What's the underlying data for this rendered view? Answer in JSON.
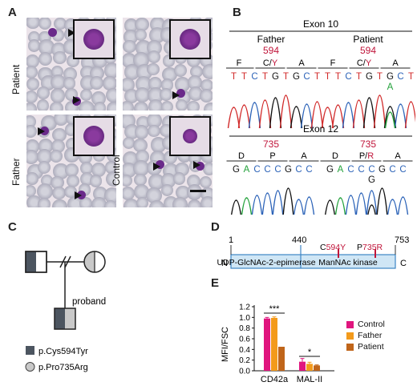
{
  "panels": {
    "A": "A",
    "B": "B",
    "C": "C",
    "D": "D",
    "E": "E"
  },
  "panel_a": {
    "row_labels": {
      "patient": "Patient",
      "father": "Father",
      "control": "Control"
    }
  },
  "panel_b": {
    "exon10": {
      "title": "Exon 10",
      "left_label": "Father",
      "right_label": "Patient",
      "position": "594",
      "amino_acids": [
        "F",
        "C/Y",
        "A"
      ],
      "bases": [
        "T",
        "T",
        "C",
        "T",
        "G",
        "T",
        "G",
        "C",
        "T"
      ],
      "variant_base": "A",
      "base_colors": {
        "T": "#d12a2a",
        "C": "#2c63b8",
        "G": "#111111",
        "A": "#22a13a"
      }
    },
    "exon12": {
      "title": "Exon 12",
      "position": "735",
      "left_amino_acids": [
        "D",
        "P",
        "A"
      ],
      "right_amino_acids": [
        "D",
        "P/R",
        "A"
      ],
      "bases": [
        "G",
        "A",
        "C",
        "C",
        "C",
        "G",
        "C",
        "C"
      ],
      "variant_base": "G"
    }
  },
  "panel_c": {
    "proband_label": "proband",
    "legend": [
      {
        "label": "p.Cys594Tyr",
        "shape": "square"
      },
      {
        "label": "p.Pro735Arg",
        "shape": "circle"
      }
    ]
  },
  "panel_d": {
    "start": "1",
    "mid": "440",
    "end": "753",
    "n_term": "N",
    "c_term": "C",
    "domain1": "UDP-GlcNAc-2-epimerase",
    "domain2": "ManNAc kinase",
    "mutations": [
      {
        "prefix": "C",
        "pos": "594",
        "suffix": "Y"
      },
      {
        "prefix": "P",
        "pos": "735",
        "suffix": "R"
      }
    ]
  },
  "colors": {
    "control": "#e0157e",
    "father": "#f39a1b",
    "patient": "#c0651a",
    "domain_fill": "#cfe6f5",
    "domain_stroke": "#3d86c4",
    "mutation": "#c0153a",
    "carrier": "#4c5560"
  },
  "chart_data": {
    "type": "bar",
    "categories": [
      "CD42a",
      "MAL-II"
    ],
    "series": [
      {
        "name": "Control",
        "values": [
          0.98,
          0.17
        ],
        "errors": [
          0.02,
          0.06
        ]
      },
      {
        "name": "Father",
        "values": [
          0.99,
          0.13
        ],
        "errors": [
          0.02,
          0.03
        ]
      },
      {
        "name": "Patient",
        "values": [
          0.45,
          0.1
        ],
        "errors": [
          0.0,
          0.01
        ]
      }
    ],
    "ylabel": "MFI/FSC",
    "ylim": [
      0,
      1.2
    ],
    "yticks": [
      "0.0",
      "0.2",
      "0.4",
      "0.6",
      "0.8",
      "1.0",
      "1.2"
    ],
    "significance": [
      "***",
      "*"
    ],
    "legend_position": "right"
  }
}
